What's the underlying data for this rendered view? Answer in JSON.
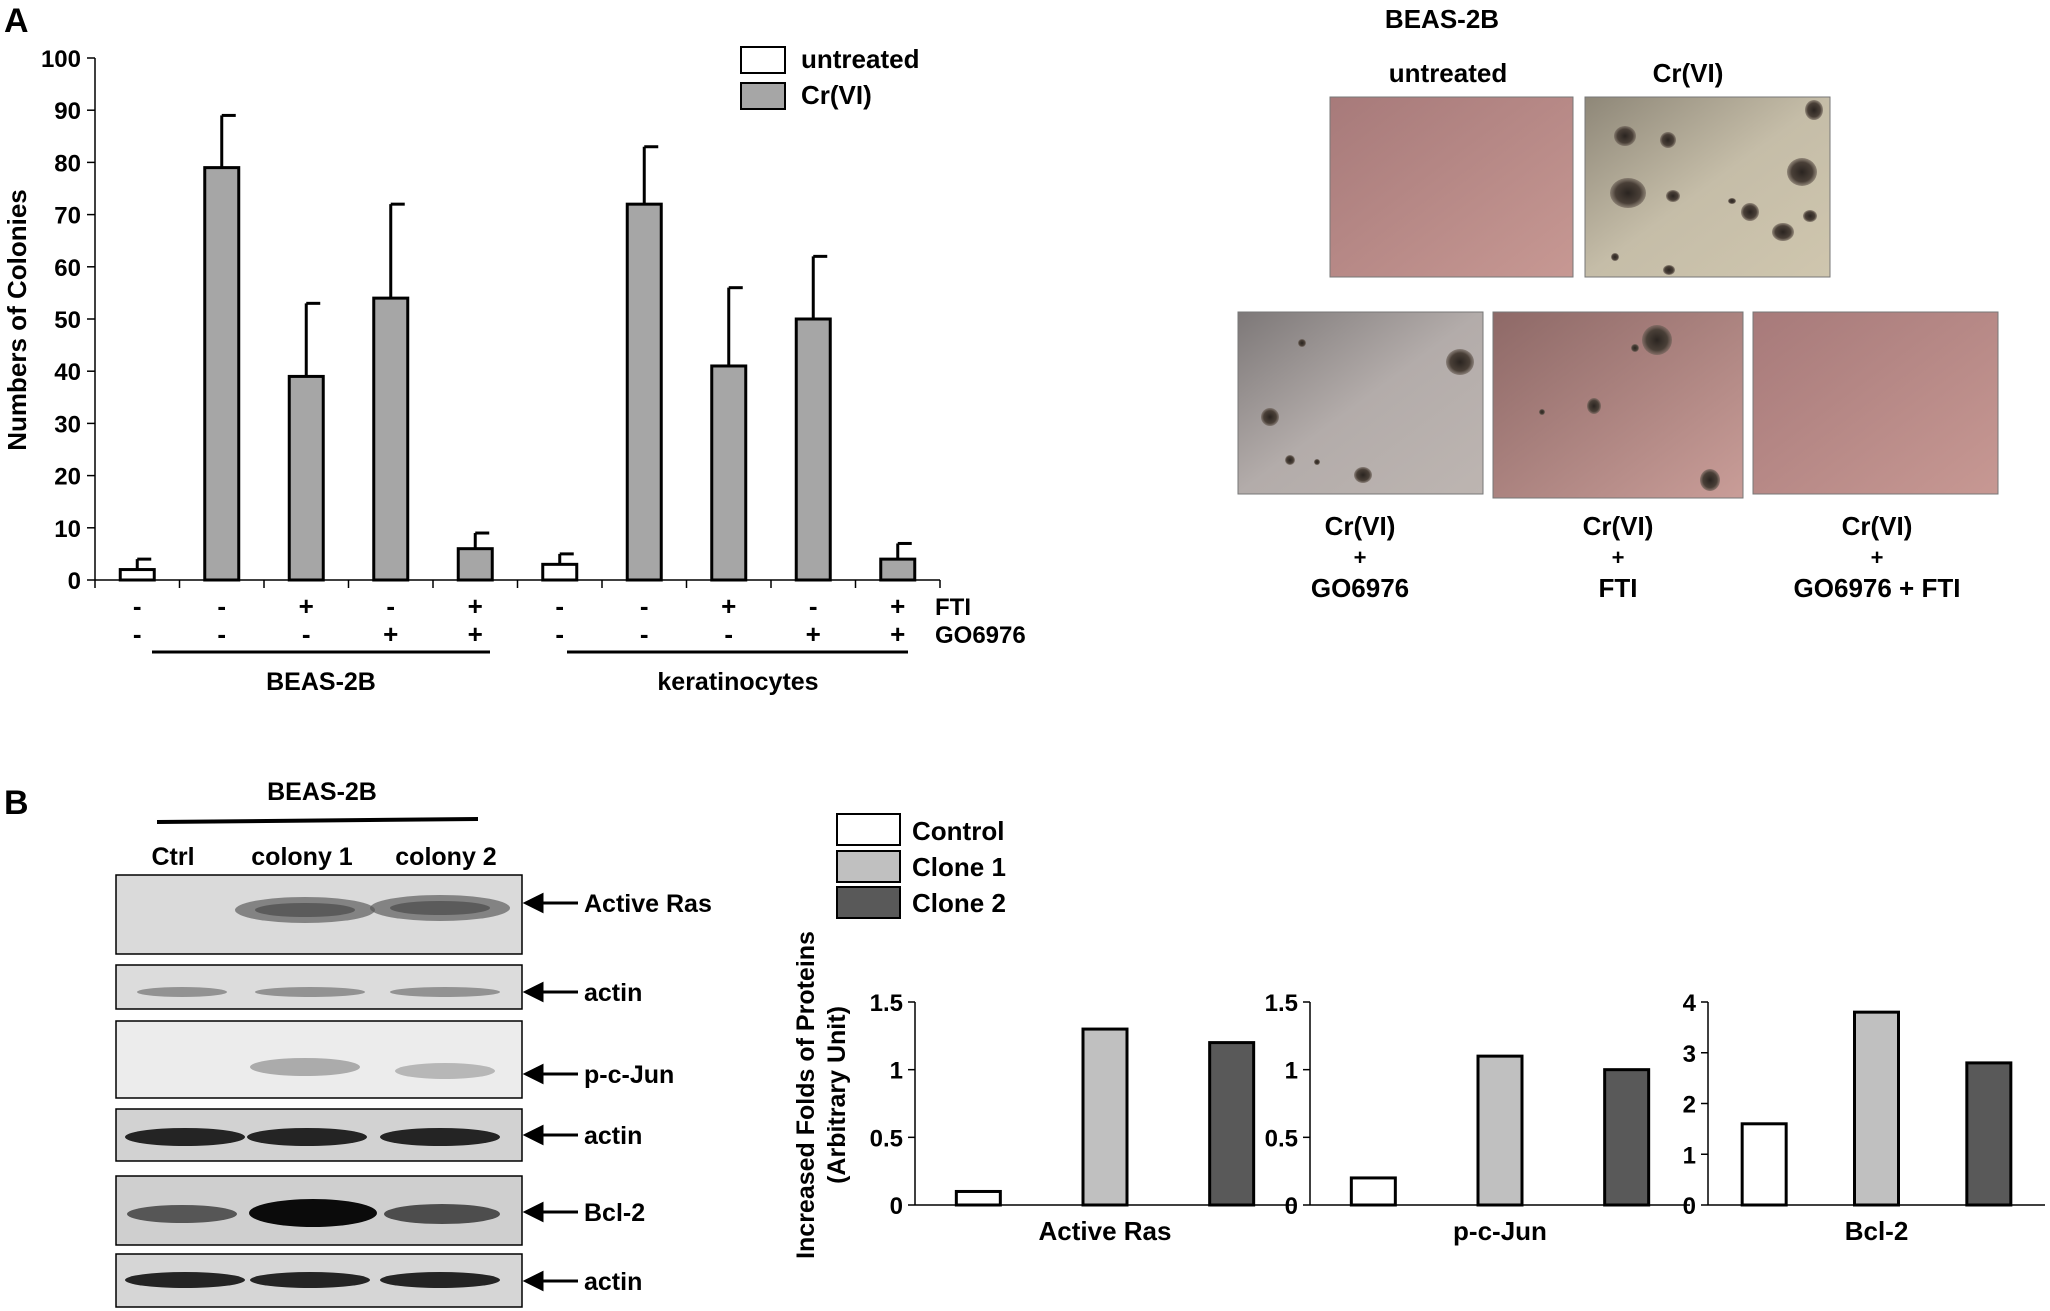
{
  "panel_labels": {
    "a": "A",
    "b": "B"
  },
  "colors": {
    "untreated": "#ffffff",
    "crvi": "#a6a6a6",
    "control": "#ffffff",
    "clone1": "#c0c0c0",
    "clone2": "#595959"
  },
  "panel_a": {
    "chart": {
      "ylabel": "Numbers of Colonies",
      "yticks": [
        "0",
        "10",
        "20",
        "30",
        "40",
        "50",
        "60",
        "70",
        "80",
        "90",
        "100"
      ],
      "legend": [
        "untreated",
        "Cr(VI)"
      ],
      "row_labels": [
        "FTI",
        "GO6976"
      ],
      "fti_signs": [
        "-",
        "-",
        "+",
        "-",
        "+",
        "-",
        "-",
        "+",
        "-",
        "+"
      ],
      "go_signs": [
        "-",
        "-",
        "-",
        "+",
        "+",
        "-",
        "-",
        "-",
        "+",
        "+"
      ],
      "groups": [
        "BEAS-2B",
        "keratinocytes"
      ]
    },
    "micro": {
      "title": "BEAS-2B",
      "top_labels": [
        "untreated",
        "Cr(VI)"
      ],
      "bottom_labels": [
        [
          "Cr(VI)",
          "+",
          "GO6976"
        ],
        [
          "Cr(VI)",
          "+",
          "FTI"
        ],
        [
          "Cr(VI)",
          "+",
          "GO6976 + FTI"
        ]
      ]
    }
  },
  "panel_b": {
    "blot": {
      "title": "BEAS-2B",
      "lanes": [
        "Ctrl",
        "colony 1",
        "colony 2"
      ],
      "bands": [
        "Active Ras",
        "actin",
        "p-c-Jun",
        "actin",
        "Bcl-2",
        "actin"
      ]
    },
    "legend": [
      "Control",
      "Clone 1",
      "Clone 2"
    ],
    "ylabel_line1": "Increased Folds of Proteins",
    "ylabel_line2": "(Arbitrary Unit)"
  },
  "chart_data": [
    {
      "type": "bar",
      "title": "",
      "ylabel": "Numbers of Colonies",
      "ylim": [
        0,
        100
      ],
      "series": [
        {
          "name": "untreated",
          "x": [
            1,
            6
          ],
          "values": [
            2,
            3
          ],
          "errors": [
            2,
            2
          ]
        },
        {
          "name": "Cr(VI)",
          "x": [
            2,
            3,
            4,
            5,
            7,
            8,
            9,
            10
          ],
          "values": [
            79,
            39,
            54,
            6,
            72,
            41,
            50,
            4
          ],
          "errors": [
            10,
            14,
            18,
            3,
            11,
            15,
            12,
            3
          ]
        }
      ],
      "groups": [
        {
          "name": "BEAS-2B",
          "x": [
            1,
            2,
            3,
            4,
            5
          ]
        },
        {
          "name": "keratinocytes",
          "x": [
            6,
            7,
            8,
            9,
            10
          ]
        }
      ],
      "fti": [
        "-",
        "-",
        "+",
        "-",
        "+",
        "-",
        "-",
        "+",
        "-",
        "+"
      ],
      "go6976": [
        "-",
        "-",
        "-",
        "+",
        "+",
        "-",
        "-",
        "-",
        "+",
        "+"
      ],
      "legend_position": "top-right"
    },
    {
      "type": "bar",
      "xlabel": "Active Ras",
      "ylim": [
        0,
        1.5
      ],
      "yticks": [
        "0",
        "0.5",
        "1",
        "1.5"
      ],
      "categories": [
        "Control",
        "Clone 1",
        "Clone 2"
      ],
      "values": [
        0.1,
        1.3,
        1.2
      ]
    },
    {
      "type": "bar",
      "xlabel": "p-c-Jun",
      "ylim": [
        0,
        1.5
      ],
      "yticks": [
        "0",
        "0.5",
        "1",
        "1.5"
      ],
      "categories": [
        "Control",
        "Clone 1",
        "Clone 2"
      ],
      "values": [
        0.2,
        1.1,
        1.0
      ]
    },
    {
      "type": "bar",
      "xlabel": "Bcl-2",
      "ylim": [
        0,
        4
      ],
      "yticks": [
        "0",
        "1",
        "2",
        "3",
        "4"
      ],
      "categories": [
        "Control",
        "Clone 1",
        "Clone 2"
      ],
      "values": [
        1.6,
        3.8,
        2.8
      ]
    }
  ]
}
